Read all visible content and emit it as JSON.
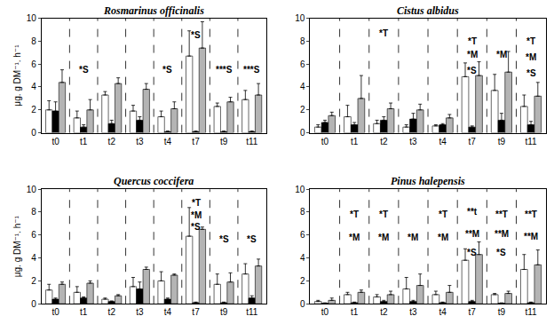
{
  "chart_data": [
    {
      "type": "bar",
      "title": "Rosmarinus officinalis",
      "y_label": "μg. g DM⁻¹. h⁻¹",
      "categories": [
        "t0",
        "t1",
        "t2",
        "t3",
        "t4",
        "t7",
        "t9",
        "t11"
      ],
      "series": [
        {
          "color": "#ffffff",
          "values": [
            2.0,
            1.3,
            3.3,
            1.9,
            1.4,
            6.7,
            2.3,
            2.9
          ],
          "error": [
            0.8,
            0.6,
            0.3,
            0.5,
            0.5,
            2.2,
            0.3,
            0.8
          ]
        },
        {
          "color": "#000000",
          "values": [
            1.9,
            0.5,
            0.8,
            1.1,
            0.1,
            0.1,
            0.1,
            0.1
          ],
          "error": [
            0.8,
            0.2,
            0.3,
            0.3,
            0.05,
            0.05,
            0.05,
            0.05
          ]
        },
        {
          "color": "#b4b4b4",
          "values": [
            4.4,
            2.0,
            4.3,
            3.8,
            2.1,
            7.4,
            2.7,
            3.3
          ],
          "error": [
            1.1,
            0.9,
            0.5,
            0.5,
            0.6,
            2.3,
            0.4,
            1.0
          ]
        }
      ],
      "ylim": [
        0,
        10
      ],
      "yticks": [
        0,
        2,
        4,
        6,
        8,
        10
      ],
      "annotations": [
        {
          "category": "t1",
          "text": "*S",
          "y": 5.5
        },
        {
          "category": "t4",
          "text": "*S",
          "y": 5.5
        },
        {
          "category": "t7",
          "text": "*S",
          "y": 8.5
        },
        {
          "category": "t9",
          "text": "***S",
          "y": 5.5
        },
        {
          "category": "t11",
          "text": "***S",
          "y": 5.5
        }
      ]
    },
    {
      "type": "bar",
      "title": "Cistus albidus",
      "categories": [
        "t0",
        "t1",
        "t2",
        "t3",
        "t4",
        "t7",
        "t9",
        "t11"
      ],
      "series": [
        {
          "color": "#ffffff",
          "values": [
            0.5,
            1.4,
            0.8,
            0.5,
            0.6,
            4.9,
            3.7,
            2.3
          ],
          "error": [
            0.2,
            1.0,
            0.3,
            0.2,
            0.1,
            1.2,
            1.4,
            1.0
          ]
        },
        {
          "color": "#000000",
          "values": [
            0.9,
            0.7,
            1.1,
            1.2,
            0.7,
            0.5,
            1.1,
            0.7
          ],
          "error": [
            0.2,
            0.2,
            0.3,
            0.5,
            0.1,
            0.1,
            0.6,
            0.3
          ]
        },
        {
          "color": "#b4b4b4",
          "values": [
            1.5,
            3.0,
            2.1,
            2.0,
            1.3,
            5.0,
            5.3,
            3.2
          ],
          "error": [
            0.3,
            2.0,
            0.5,
            0.5,
            0.3,
            1.2,
            1.8,
            1.2
          ]
        }
      ],
      "ylim": [
        0,
        10
      ],
      "yticks": [
        0,
        2,
        4,
        6,
        8,
        10
      ],
      "annotations": [
        {
          "category": "t2",
          "text": "*T",
          "y": 8.7
        },
        {
          "category": "t7",
          "text": "*T",
          "y": 8.0
        },
        {
          "category": "t7",
          "text": "*M",
          "y": 6.8
        },
        {
          "category": "t7",
          "text": "*S",
          "y": 5.4
        },
        {
          "category": "t9",
          "text": "*M",
          "y": 6.8
        },
        {
          "category": "t11",
          "text": "*T",
          "y": 8.0
        },
        {
          "category": "t11",
          "text": "*M",
          "y": 6.6
        },
        {
          "category": "t11",
          "text": "*S",
          "y": 5.2
        }
      ]
    },
    {
      "type": "bar",
      "title": "Quercus coccifera",
      "y_label": "μg. g DM⁻¹. h⁻¹",
      "categories": [
        "t0",
        "t1",
        "t2",
        "t3",
        "t4",
        "t7",
        "t9",
        "t11"
      ],
      "series": [
        {
          "color": "#ffffff",
          "values": [
            1.2,
            1.0,
            0.4,
            1.5,
            2.0,
            5.9,
            1.7,
            2.6
          ],
          "error": [
            0.5,
            0.5,
            0.1,
            0.8,
            0.8,
            2.5,
            0.9,
            0.9
          ]
        },
        {
          "color": "#000000",
          "values": [
            0.4,
            0.5,
            0.2,
            1.3,
            0.4,
            0.1,
            0.1,
            0.5
          ],
          "error": [
            0.1,
            0.1,
            0.05,
            0.6,
            0.1,
            0.05,
            0.05,
            0.2
          ]
        },
        {
          "color": "#b4b4b4",
          "values": [
            1.7,
            1.8,
            0.7,
            3.0,
            2.5,
            6.5,
            1.9,
            3.3
          ],
          "error": [
            0.2,
            0.2,
            0.1,
            0.2,
            0.1,
            0.2,
            0.8,
            0.6
          ]
        }
      ],
      "ylim": [
        0,
        10
      ],
      "yticks": [
        0,
        2,
        4,
        6,
        8,
        10
      ],
      "annotations": [
        {
          "category": "t7",
          "text": "*T",
          "y": 8.8
        },
        {
          "category": "t7",
          "text": "*M",
          "y": 7.7
        },
        {
          "category": "t7",
          "text": "*S",
          "y": 6.7
        },
        {
          "category": "t9",
          "text": "*S",
          "y": 5.6
        },
        {
          "category": "t11",
          "text": "*S",
          "y": 5.6
        }
      ]
    },
    {
      "type": "bar",
      "title": "Pinus halepensis",
      "categories": [
        "t0",
        "t1",
        "t2",
        "t3",
        "t4",
        "t7",
        "t9",
        "t11"
      ],
      "series": [
        {
          "color": "#ffffff",
          "values": [
            0.2,
            0.8,
            0.6,
            1.3,
            0.8,
            3.8,
            0.8,
            3.0
          ],
          "error": [
            0.1,
            0.2,
            0.2,
            1.0,
            0.3,
            1.0,
            0.1,
            1.3
          ]
        },
        {
          "color": "#000000",
          "values": [
            0.05,
            0.1,
            0.2,
            0.2,
            0.1,
            0.2,
            0.05,
            0.1
          ],
          "error": [
            0.03,
            0.05,
            0.1,
            0.1,
            0.05,
            0.1,
            0.03,
            0.05
          ]
        },
        {
          "color": "#b4b4b4",
          "values": [
            0.3,
            1.0,
            0.8,
            1.6,
            1.0,
            4.3,
            0.9,
            3.4
          ],
          "error": [
            0.2,
            0.2,
            0.3,
            1.0,
            0.6,
            1.1,
            0.2,
            1.3
          ]
        }
      ],
      "ylim": [
        0,
        10
      ],
      "yticks": [
        0,
        2,
        4,
        6,
        8,
        10
      ],
      "annotations": [
        {
          "category": "t1",
          "text": "*T",
          "y": 7.8
        },
        {
          "category": "t1",
          "text": "*M",
          "y": 5.8
        },
        {
          "category": "t2",
          "text": "*T",
          "y": 7.8
        },
        {
          "category": "t2",
          "text": "*M",
          "y": 5.8
        },
        {
          "category": "t3",
          "text": "*M",
          "y": 5.8
        },
        {
          "category": "t4",
          "text": "*T",
          "y": 7.8
        },
        {
          "category": "t4",
          "text": "*M",
          "y": 5.8
        },
        {
          "category": "t7",
          "text": "**t",
          "y": 8.0
        },
        {
          "category": "t7",
          "text": "**M",
          "y": 6.1
        },
        {
          "category": "t7",
          "text": "*S",
          "y": 4.5
        },
        {
          "category": "t9",
          "text": "**T",
          "y": 7.8
        },
        {
          "category": "t9",
          "text": "**M",
          "y": 6.1
        },
        {
          "category": "t9",
          "text": "*S",
          "y": 4.5
        },
        {
          "category": "t11",
          "text": "**T",
          "y": 7.8
        },
        {
          "category": "t11",
          "text": "**M",
          "y": 5.9
        }
      ]
    }
  ]
}
